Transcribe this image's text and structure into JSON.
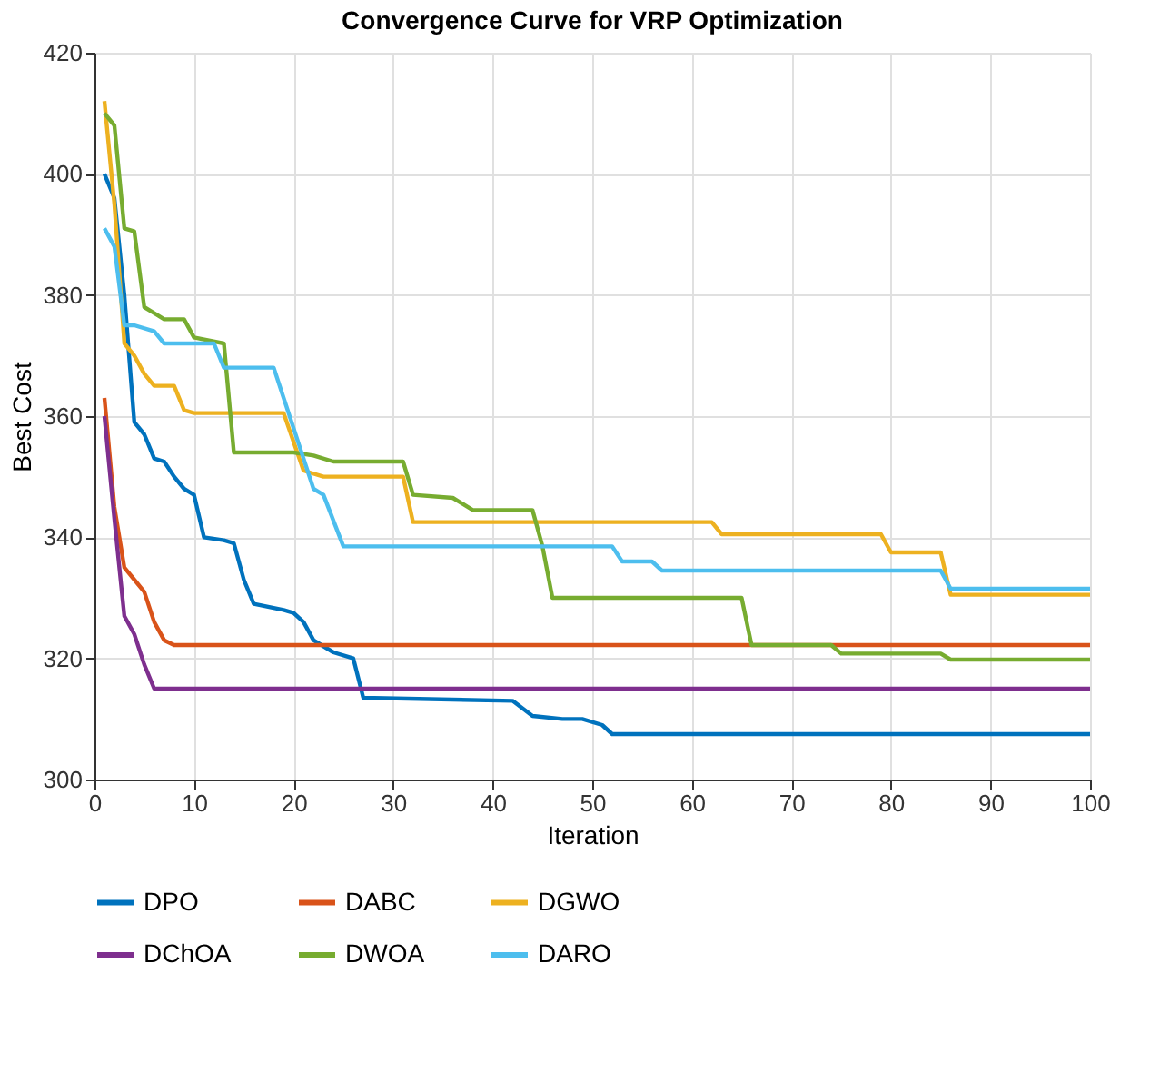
{
  "chart_data": {
    "type": "line",
    "title": "Convergence Curve for VRP Optimization",
    "xlabel": "Iteration",
    "ylabel": "Best Cost",
    "xlim": [
      0,
      100
    ],
    "xticks": [
      0,
      10,
      20,
      30,
      40,
      50,
      60,
      70,
      80,
      90,
      100
    ],
    "ylim": [
      300,
      420
    ],
    "yticks": [
      300,
      320,
      340,
      360,
      380,
      400,
      420
    ],
    "grid": true,
    "legend": "bottom",
    "marker": "none",
    "line_style": "solid",
    "series": [
      {
        "name": "DPO",
        "color": "#0072bd",
        "x": [
          1,
          2,
          3,
          4,
          5,
          6,
          7,
          8,
          9,
          10,
          11,
          13,
          14,
          15,
          16,
          19,
          20,
          21,
          22,
          24,
          26,
          27,
          42,
          44,
          47,
          49,
          51,
          52,
          100
        ],
        "values": [
          400,
          396,
          380,
          359,
          357,
          353,
          352.5,
          350,
          348,
          347,
          340,
          339.5,
          339,
          333,
          329,
          328,
          327.5,
          326,
          323,
          321,
          320,
          313.5,
          313,
          310.5,
          310,
          310,
          309,
          307.5,
          307.5
        ]
      },
      {
        "name": "DABC",
        "color": "#d95319",
        "x": [
          1,
          2,
          3,
          4,
          5,
          6,
          7,
          8,
          100
        ],
        "values": [
          363,
          345,
          335,
          333,
          331,
          326,
          323,
          322.2,
          322.2
        ]
      },
      {
        "name": "DGWO",
        "color": "#edb120",
        "x": [
          1,
          2,
          3,
          4,
          5,
          6,
          8,
          9,
          10,
          19,
          21,
          23,
          31,
          32,
          62,
          63,
          79,
          80,
          85,
          86,
          100
        ],
        "values": [
          412,
          395,
          372,
          370,
          367,
          365,
          365,
          361,
          360.5,
          360.5,
          351,
          350,
          350,
          342.5,
          342.5,
          340.5,
          340.5,
          337.5,
          337.5,
          330.5,
          330.5
        ]
      },
      {
        "name": "DChOA",
        "color": "#7e2f8e",
        "x": [
          1,
          2,
          3,
          4,
          5,
          6,
          100
        ],
        "values": [
          360,
          343,
          327,
          324,
          319,
          315,
          315
        ]
      },
      {
        "name": "DWOA",
        "color": "#77ac30",
        "x": [
          1,
          2,
          3,
          4,
          5,
          6,
          7,
          9,
          10,
          13,
          14,
          20,
          22,
          24,
          31,
          32,
          36,
          37,
          38,
          44,
          45,
          46,
          65,
          66,
          74,
          75,
          85,
          86,
          100
        ],
        "values": [
          410,
          408,
          391,
          390.5,
          378,
          377,
          376,
          376,
          373,
          372,
          354,
          354,
          353.5,
          352.5,
          352.5,
          347,
          346.5,
          345.5,
          344.5,
          344.5,
          338.5,
          330,
          330,
          322.2,
          322.2,
          320.8,
          320.8,
          319.8,
          319.8
        ]
      },
      {
        "name": "DARO",
        "color": "#4dbeee",
        "x": [
          1,
          2,
          3,
          4,
          6,
          7,
          12,
          13,
          18,
          19,
          21,
          22,
          23,
          25,
          52,
          53,
          56,
          57,
          85,
          86,
          100
        ],
        "values": [
          391,
          388,
          375,
          375,
          374,
          372,
          372,
          368,
          368,
          363,
          353,
          348,
          347,
          338.5,
          338.5,
          336,
          336,
          334.5,
          334.5,
          331.5,
          331.5
        ]
      }
    ]
  }
}
